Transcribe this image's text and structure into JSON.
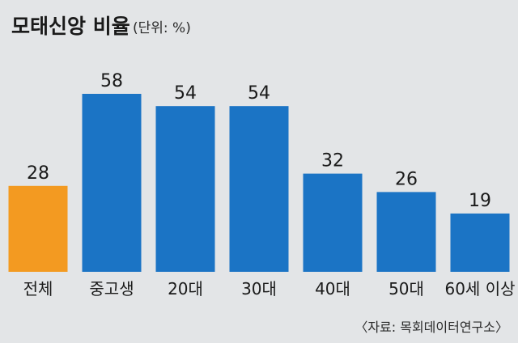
{
  "chart_data": {
    "type": "bar",
    "title": "모태신앙 비율",
    "unit_note": "(단위: %)",
    "categories": [
      "전체",
      "중고생",
      "20대",
      "30대",
      "40대",
      "50대",
      "60세 이상"
    ],
    "values": [
      28,
      58,
      54,
      54,
      32,
      26,
      19
    ],
    "value_labels": [
      "28",
      "58",
      "54",
      "54",
      "32",
      "26",
      "19"
    ],
    "bar_colors": [
      "#f39a21",
      "#1b74c5",
      "#1b74c5",
      "#1b74c5",
      "#1b74c5",
      "#1b74c5",
      "#1b74c5"
    ],
    "ylim": [
      0,
      58
    ],
    "grid": false,
    "source": "〈자료: 목회데이터연구소〉"
  }
}
